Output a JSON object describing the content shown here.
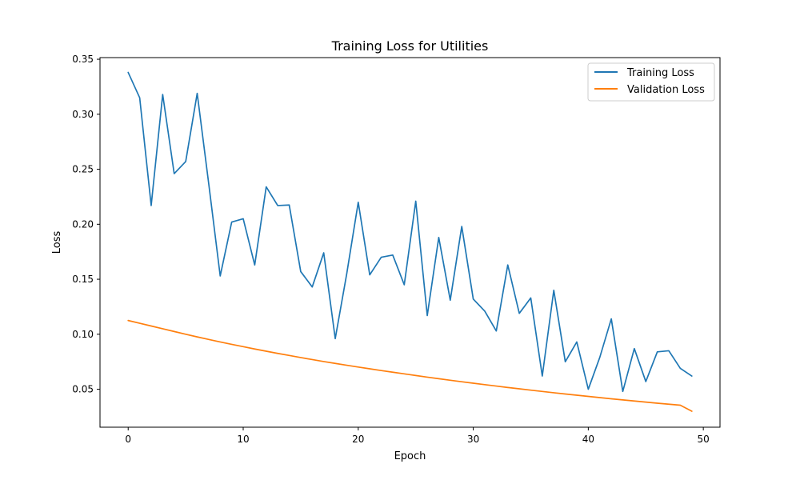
{
  "chart_data": {
    "type": "line",
    "title": "Training Loss for Utilities",
    "xlabel": "Epoch",
    "ylabel": "Loss",
    "xlim": [
      -2.45,
      51.45
    ],
    "ylim": [
      0.0155,
      0.3515
    ],
    "xticks": [
      0,
      10,
      20,
      30,
      40,
      50
    ],
    "yticks": [
      0.05,
      0.1,
      0.15,
      0.2,
      0.25,
      0.3,
      0.35
    ],
    "ytick_labels": [
      "0.05",
      "0.10",
      "0.15",
      "0.20",
      "0.25",
      "0.30",
      "0.35"
    ],
    "grid": false,
    "legend": "top-right",
    "x": [
      0,
      1,
      2,
      3,
      4,
      5,
      6,
      7,
      8,
      9,
      10,
      11,
      12,
      13,
      14,
      15,
      16,
      17,
      18,
      19,
      20,
      21,
      22,
      23,
      24,
      25,
      26,
      27,
      28,
      29,
      30,
      31,
      32,
      33,
      34,
      35,
      36,
      37,
      38,
      39,
      40,
      41,
      42,
      43,
      44,
      45,
      46,
      47,
      48,
      49
    ],
    "series": [
      {
        "name": "Training Loss",
        "color": "#1f77b4",
        "values": [
          0.338,
          0.315,
          0.217,
          0.318,
          0.246,
          0.257,
          0.319,
          0.237,
          0.153,
          0.202,
          0.205,
          0.163,
          0.234,
          0.217,
          0.2175,
          0.157,
          0.143,
          0.174,
          0.096,
          0.155,
          0.22,
          0.154,
          0.17,
          0.172,
          0.145,
          0.221,
          0.117,
          0.188,
          0.131,
          0.198,
          0.132,
          0.121,
          0.103,
          0.163,
          0.119,
          0.133,
          0.062,
          0.14,
          0.075,
          0.093,
          0.05,
          0.079,
          0.114,
          0.048,
          0.087,
          0.057,
          0.084,
          0.085,
          0.069,
          0.062
        ]
      },
      {
        "name": "Validation Loss",
        "color": "#ff7f0e",
        "values": [
          0.1125,
          0.11,
          0.1075,
          0.105,
          0.1025,
          0.1,
          0.0976,
          0.0953,
          0.093,
          0.0908,
          0.0887,
          0.0866,
          0.0846,
          0.0826,
          0.0807,
          0.0788,
          0.077,
          0.0752,
          0.0735,
          0.0718,
          0.0702,
          0.0686,
          0.067,
          0.0655,
          0.064,
          0.0625,
          0.061,
          0.0596,
          0.0582,
          0.0568,
          0.0555,
          0.0542,
          0.0529,
          0.0516,
          0.0504,
          0.0492,
          0.048,
          0.0468,
          0.0457,
          0.0446,
          0.0435,
          0.0424,
          0.0413,
          0.0403,
          0.0393,
          0.0383,
          0.0373,
          0.0364,
          0.0355,
          0.03
        ]
      }
    ]
  }
}
